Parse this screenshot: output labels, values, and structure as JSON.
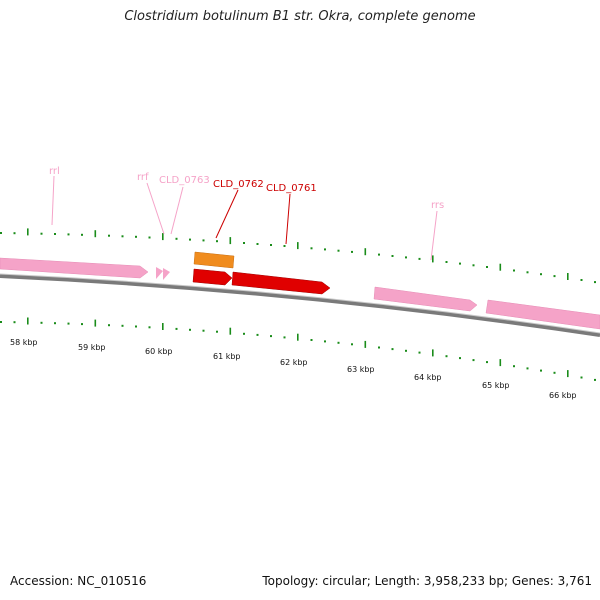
{
  "title": "Clostridium botulinum B1 str. Okra, complete genome",
  "footer": {
    "accession": "Accession: NC_010516",
    "summary": "Topology: circular; Length: 3,958,233 bp; Genes: 3,761"
  },
  "colors": {
    "rna_feature": "#f5a3c8",
    "highlight_gene": "#e00000",
    "cds_orange": "#f08c1e",
    "tick_green": "#1a8c1a",
    "backbone": "#7a7a7a"
  },
  "scale_labels": [
    "58 kbp",
    "59 kbp",
    "60 kbp",
    "61 kbp",
    "62 kbp",
    "63 kbp",
    "64 kbp",
    "65 kbp",
    "66 kbp"
  ],
  "feature_labels": [
    {
      "text": "rrl",
      "color": "#f5a3c8"
    },
    {
      "text": "rrf",
      "color": "#f5a3c8"
    },
    {
      "text": "CLD_0763",
      "color": "#f5a3c8"
    },
    {
      "text": "CLD_0762",
      "color": "#cc0000"
    },
    {
      "text": "CLD_0761",
      "color": "#cc0000"
    },
    {
      "text": "rrs",
      "color": "#f5a3c8"
    }
  ]
}
